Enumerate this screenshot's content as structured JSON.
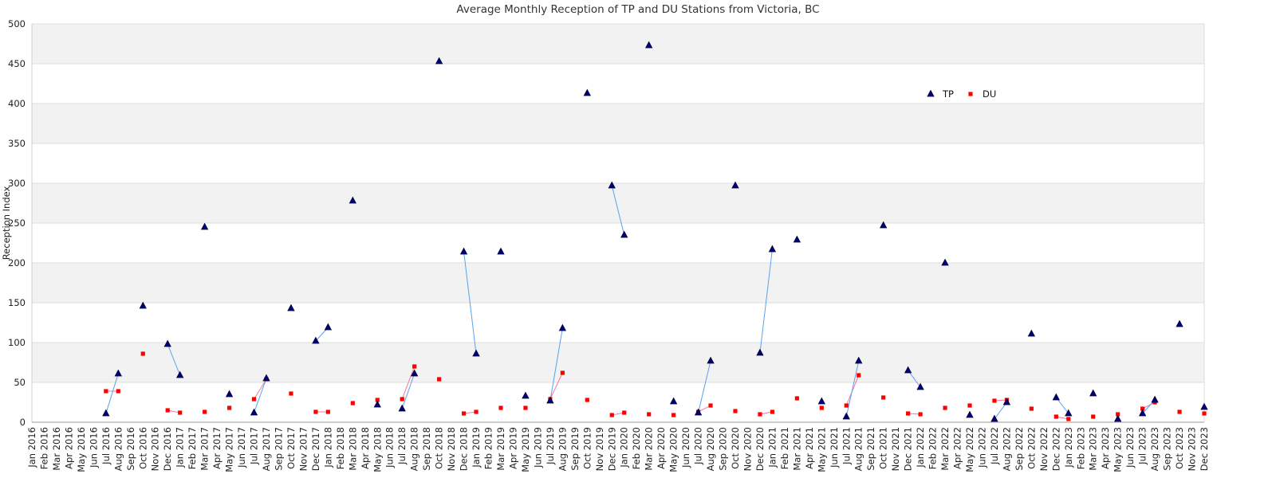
{
  "chart_data": {
    "type": "line",
    "title": "Average Monthly Reception of TP and DU Stations from Victoria, BC",
    "xlabel": "",
    "ylabel": "Reception Index",
    "ylim": [
      0,
      500
    ],
    "yticks": [
      0,
      50,
      100,
      150,
      200,
      250,
      300,
      350,
      400,
      450,
      500
    ],
    "grid": true,
    "legend_position": "top-right",
    "categories": [
      "Jan 2016",
      "Feb 2016",
      "Mar 2016",
      "Apr 2016",
      "May 2016",
      "Jun 2016",
      "Jul 2016",
      "Aug 2016",
      "Sep 2016",
      "Oct 2016",
      "Nov 2016",
      "Dec 2016",
      "Jan 2017",
      "Feb 2017",
      "Mar 2017",
      "Apr 2017",
      "May 2017",
      "Jun 2017",
      "Jul 2017",
      "Aug 2017",
      "Sep 2017",
      "Oct 2017",
      "Nov 2017",
      "Dec 2017",
      "Jan 2018",
      "Feb 2018",
      "Mar 2018",
      "Apr 2018",
      "May 2018",
      "Jun 2018",
      "Jul 2018",
      "Aug 2018",
      "Sep 2018",
      "Oct 2018",
      "Nov 2018",
      "Dec 2018",
      "Jan 2019",
      "Feb 2019",
      "Mar 2019",
      "Apr 2019",
      "May 2019",
      "Jun 2019",
      "Jul 2019",
      "Aug 2019",
      "Sep 2019",
      "Oct 2019",
      "Nov 2019",
      "Dec 2019",
      "Jan 2020",
      "Feb 2020",
      "Mar 2020",
      "Apr 2020",
      "May 2020",
      "Jun 2020",
      "Jul 2020",
      "Aug 2020",
      "Sep 2020",
      "Oct 2020",
      "Nov 2020",
      "Dec 2020",
      "Jan 2021",
      "Feb 2021",
      "Mar 2021",
      "Apr 2021",
      "May 2021",
      "Jun 2021",
      "Jul 2021",
      "Aug 2021",
      "Sep 2021",
      "Oct 2021",
      "Nov 2021",
      "Dec 2021",
      "Jan 2022",
      "Feb 2022",
      "Mar 2022",
      "Apr 2022",
      "May 2022",
      "Jun 2022",
      "Jul 2022",
      "Aug 2022",
      "Sep 2022",
      "Oct 2022",
      "Nov 2022",
      "Dec 2022",
      "Jan 2023",
      "Feb 2023",
      "Mar 2023",
      "Apr 2023",
      "May 2023",
      "Jun 2023",
      "Jul 2023",
      "Aug 2023",
      "Sep 2023",
      "Oct 2023",
      "Nov 2023",
      "Dec 2023"
    ],
    "series": [
      {
        "name": "TP",
        "marker": "triangle",
        "marker_color": "#000080",
        "line_color": "#5aa0f0",
        "values": [
          null,
          null,
          null,
          null,
          null,
          null,
          11,
          61,
          null,
          146,
          null,
          98,
          59,
          null,
          245,
          null,
          35,
          null,
          12,
          55,
          null,
          143,
          null,
          102,
          119,
          null,
          278,
          null,
          22,
          null,
          17,
          61,
          null,
          453,
          null,
          214,
          86,
          null,
          214,
          null,
          33,
          null,
          27,
          118,
          null,
          413,
          null,
          297,
          235,
          null,
          473,
          null,
          26,
          null,
          12,
          77,
          null,
          297,
          null,
          87,
          217,
          null,
          229,
          null,
          26,
          null,
          7,
          77,
          null,
          247,
          null,
          65,
          44,
          null,
          200,
          null,
          9,
          null,
          4,
          25,
          null,
          111,
          null,
          31,
          11,
          null,
          36,
          null,
          4,
          null,
          11,
          28,
          null,
          123,
          null,
          19
        ]
      },
      {
        "name": "DU",
        "marker": "square",
        "marker_color": "#ff0000",
        "line_color": "#f07aa0",
        "values": [
          null,
          null,
          null,
          null,
          null,
          null,
          39,
          39,
          null,
          86,
          null,
          15,
          12,
          null,
          13,
          null,
          18,
          null,
          29,
          54,
          null,
          36,
          null,
          13,
          13,
          null,
          24,
          null,
          28,
          null,
          29,
          70,
          null,
          54,
          null,
          11,
          13,
          null,
          18,
          null,
          18,
          null,
          29,
          62,
          null,
          28,
          null,
          9,
          12,
          null,
          10,
          null,
          9,
          null,
          13,
          21,
          null,
          14,
          null,
          10,
          13,
          null,
          30,
          null,
          18,
          null,
          21,
          59,
          null,
          31,
          null,
          11,
          10,
          null,
          18,
          null,
          21,
          null,
          27,
          28,
          null,
          17,
          null,
          7,
          4,
          null,
          7,
          null,
          10,
          null,
          17,
          25,
          null,
          13,
          null,
          11
        ]
      }
    ]
  }
}
